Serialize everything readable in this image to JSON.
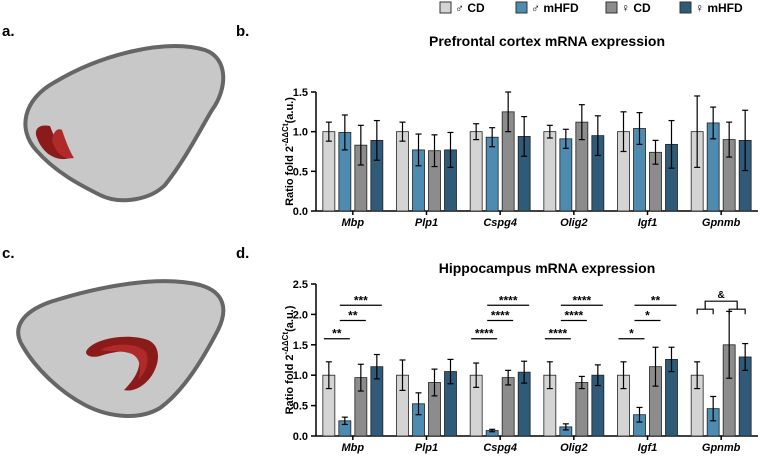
{
  "panel_labels": {
    "a": "a.",
    "b": "b.",
    "c": "c.",
    "d": "d."
  },
  "legend": [
    {
      "label": "♂ CD",
      "color": "#d4d4d4"
    },
    {
      "label": "♂ mHFD",
      "color": "#4d8bb0"
    },
    {
      "label": "♀ CD",
      "color": "#8c8c8c"
    },
    {
      "label": "♀ mHFD",
      "color": "#2f5a78"
    }
  ],
  "brain_colors": {
    "outline": "#666666",
    "fill": "#c8c8c8",
    "region": "#8b1a1a",
    "region_light": "#b02a2a"
  },
  "chart_data": [
    {
      "type": "bar",
      "title": "Prefrontal cortex mRNA expression",
      "ylabel": "Ratio fold 2",
      "ylabel_sup": "-ΔΔCt",
      "ylabel_suffix": "(a.u.)",
      "ylim": [
        0,
        1.5
      ],
      "yticks": [
        0.0,
        0.5,
        1.0,
        1.5
      ],
      "ytick_labels": [
        "0.0",
        "0.5",
        "1.0",
        "1.5"
      ],
      "categories": [
        "Mbp",
        "Plp1",
        "Cspg4",
        "Olig2",
        "Igf1",
        "Gpnmb"
      ],
      "series": [
        {
          "name": "♂ CD",
          "values": [
            1.0,
            1.0,
            1.0,
            1.0,
            1.0,
            1.0
          ],
          "errors": [
            0.12,
            0.12,
            0.1,
            0.08,
            0.25,
            0.45
          ]
        },
        {
          "name": "♂ mHFD",
          "values": [
            0.99,
            0.77,
            0.93,
            0.91,
            1.04,
            1.11
          ],
          "errors": [
            0.22,
            0.2,
            0.12,
            0.12,
            0.2,
            0.2
          ]
        },
        {
          "name": "♀ CD",
          "values": [
            0.83,
            0.76,
            1.25,
            1.12,
            0.74,
            0.9
          ],
          "errors": [
            0.25,
            0.2,
            0.25,
            0.22,
            0.15,
            0.22
          ]
        },
        {
          "name": "♀ mHFD",
          "values": [
            0.89,
            0.77,
            0.94,
            0.95,
            0.84,
            0.89
          ],
          "errors": [
            0.25,
            0.22,
            0.25,
            0.25,
            0.3,
            0.38
          ]
        }
      ],
      "annotations": []
    },
    {
      "type": "bar",
      "title": "Hippocampus mRNA expression",
      "ylabel": "Ratio fold 2",
      "ylabel_sup": "-ΔΔCt",
      "ylabel_suffix": "(a.u.)",
      "ylim": [
        0,
        2.5
      ],
      "yticks": [
        0.0,
        0.5,
        1.0,
        1.5,
        2.0,
        2.5
      ],
      "ytick_labels": [
        "0.0",
        "0.5",
        "1.0",
        "1.5",
        "2.0",
        "2.5"
      ],
      "categories": [
        "Mbp",
        "Plp1",
        "Cspg4",
        "Olig2",
        "Igf1",
        "Gpnmb"
      ],
      "series": [
        {
          "name": "♂ CD",
          "values": [
            1.0,
            1.0,
            1.0,
            1.0,
            1.0,
            1.0
          ],
          "errors": [
            0.22,
            0.25,
            0.2,
            0.22,
            0.22,
            0.22
          ]
        },
        {
          "name": "♂ mHFD",
          "values": [
            0.25,
            0.53,
            0.09,
            0.15,
            0.35,
            0.45
          ],
          "errors": [
            0.06,
            0.18,
            0.02,
            0.05,
            0.12,
            0.2
          ]
        },
        {
          "name": "♀ CD",
          "values": [
            0.96,
            0.88,
            0.96,
            0.88,
            1.14,
            1.5
          ],
          "errors": [
            0.22,
            0.22,
            0.12,
            0.1,
            0.32,
            0.55
          ]
        },
        {
          "name": "♀ mHFD",
          "values": [
            1.14,
            1.06,
            1.05,
            1.0,
            1.26,
            1.3
          ],
          "errors": [
            0.2,
            0.2,
            0.18,
            0.17,
            0.2,
            0.22
          ]
        }
      ],
      "annotations": [
        {
          "label": "**",
          "category": 0,
          "from": 0,
          "to": 1,
          "y": 1.6
        },
        {
          "label": "**",
          "category": 0,
          "from": 1,
          "to": 2,
          "y": 1.9
        },
        {
          "label": "***",
          "category": 0,
          "from": 1,
          "to": 3,
          "y": 2.15
        },
        {
          "label": "****",
          "category": 2,
          "from": 0,
          "to": 1,
          "y": 1.6
        },
        {
          "label": "****",
          "category": 2,
          "from": 1,
          "to": 2,
          "y": 1.9
        },
        {
          "label": "****",
          "category": 2,
          "from": 1,
          "to": 3,
          "y": 2.15
        },
        {
          "label": "****",
          "category": 3,
          "from": 0,
          "to": 1,
          "y": 1.6
        },
        {
          "label": "****",
          "category": 3,
          "from": 1,
          "to": 2,
          "y": 1.9
        },
        {
          "label": "****",
          "category": 3,
          "from": 1,
          "to": 3,
          "y": 2.15
        },
        {
          "label": "*",
          "category": 4,
          "from": 0,
          "to": 1,
          "y": 1.6
        },
        {
          "label": "*",
          "category": 4,
          "from": 1,
          "to": 2,
          "y": 1.9
        },
        {
          "label": "**",
          "category": 4,
          "from": 1,
          "to": 3,
          "y": 2.15
        },
        {
          "label": "&",
          "category": 5,
          "bracket": true,
          "left": [
            0,
            1
          ],
          "right": [
            2,
            3
          ],
          "y": 2.25
        }
      ]
    }
  ]
}
